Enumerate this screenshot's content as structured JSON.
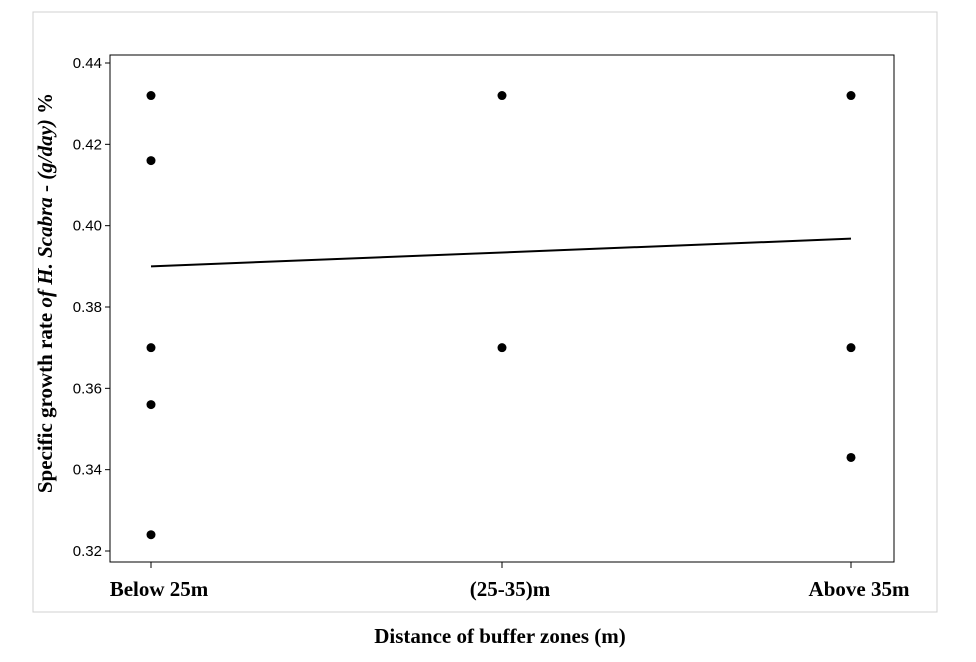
{
  "chart_data": {
    "type": "scatter",
    "title": "",
    "xlabel": "Distance of buffer zones (m)",
    "ylabel_parts": {
      "normal_start": "Specific growth rate ",
      "italic_mid": "of H. Scabra",
      "normal_end": " - ",
      "italic_unit": "(g/day)",
      "normal_pct": " %"
    },
    "categories": [
      "Below 25m",
      "(25-35)m",
      "Above 35m"
    ],
    "ylim": [
      0.32,
      0.44
    ],
    "yticks": [
      "0.32",
      "0.34",
      "0.36",
      "0.38",
      "0.40",
      "0.42",
      "0.44"
    ],
    "grid": false,
    "points": [
      {
        "category": "Below 25m",
        "y": 0.432
      },
      {
        "category": "Below 25m",
        "y": 0.416
      },
      {
        "category": "Below 25m",
        "y": 0.37
      },
      {
        "category": "Below 25m",
        "y": 0.356
      },
      {
        "category": "Below 25m",
        "y": 0.324
      },
      {
        "category": "(25-35)m",
        "y": 0.432
      },
      {
        "category": "(25-35)m",
        "y": 0.37
      },
      {
        "category": "Above 35m",
        "y": 0.432
      },
      {
        "category": "Above 35m",
        "y": 0.37
      },
      {
        "category": "Above 35m",
        "y": 0.343
      }
    ],
    "fit_line": {
      "start": {
        "category": "Below 25m",
        "y": 0.39
      },
      "end": {
        "category": "Above 35m",
        "y": 0.3968
      }
    }
  }
}
